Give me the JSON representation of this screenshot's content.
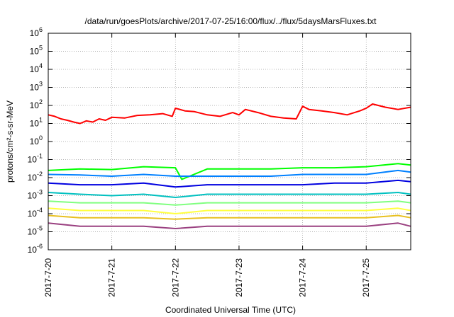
{
  "chart_data": {
    "type": "line",
    "title": "/data/run/goesPlots/archive/2017-07-25/16:00/flux/../flux/5daysMarsFluxes.txt",
    "xlabel": "Coordinated Universal Time (UTC)",
    "ylabel": "protons/cm²-s-sr-MeV",
    "y_scale": "log",
    "ylim": [
      1e-06,
      1000000.0
    ],
    "xlim": [
      0,
      5.7
    ],
    "x_ticks": [
      {
        "pos": 0,
        "label": "2017-7-20"
      },
      {
        "pos": 1,
        "label": "2017-7-21"
      },
      {
        "pos": 2,
        "label": "2017-7-22"
      },
      {
        "pos": 3,
        "label": "2017-7-23"
      },
      {
        "pos": 4,
        "label": "2017-7-24"
      },
      {
        "pos": 5,
        "label": "2017-7-25"
      }
    ],
    "y_ticks": [
      {
        "exp": "-6",
        "value": 1e-06
      },
      {
        "exp": "-5",
        "value": 1e-05
      },
      {
        "exp": "-4",
        "value": 0.0001
      },
      {
        "exp": "-3",
        "value": 0.001
      },
      {
        "exp": "-2",
        "value": 0.01
      },
      {
        "exp": "-1",
        "value": 0.1
      },
      {
        "exp": "0",
        "value": 1
      },
      {
        "exp": "1",
        "value": 10
      },
      {
        "exp": "2",
        "value": 100
      },
      {
        "exp": "3",
        "value": 1000
      },
      {
        "exp": "4",
        "value": 10000
      },
      {
        "exp": "5",
        "value": 100000
      },
      {
        "exp": "6",
        "value": 1000000
      }
    ],
    "grid": true,
    "series": [
      {
        "color": "#ff0000",
        "width": 2,
        "x": [
          0,
          0.1,
          0.2,
          0.3,
          0.4,
          0.5,
          0.6,
          0.7,
          0.8,
          0.9,
          1.0,
          1.2,
          1.4,
          1.6,
          1.8,
          1.95,
          2.0,
          2.15,
          2.3,
          2.5,
          2.7,
          2.9,
          3.0,
          3.1,
          3.3,
          3.5,
          3.7,
          3.9,
          4.0,
          4.1,
          4.3,
          4.5,
          4.7,
          4.9,
          5.0,
          5.1,
          5.3,
          5.5,
          5.7
        ],
        "y": [
          30,
          25,
          18,
          15,
          12,
          10,
          14,
          12,
          18,
          15,
          22,
          20,
          28,
          30,
          35,
          25,
          70,
          50,
          45,
          30,
          25,
          40,
          30,
          60,
          40,
          25,
          20,
          18,
          90,
          60,
          50,
          40,
          30,
          50,
          70,
          120,
          80,
          60,
          80
        ]
      },
      {
        "color": "#00ff00",
        "width": 2,
        "x": [
          0,
          0.5,
          1.0,
          1.5,
          2.0,
          2.1,
          2.5,
          3.0,
          3.5,
          4.0,
          4.5,
          5.0,
          5.5,
          5.7
        ],
        "y": [
          0.025,
          0.03,
          0.028,
          0.04,
          0.035,
          0.008,
          0.03,
          0.03,
          0.03,
          0.035,
          0.035,
          0.04,
          0.06,
          0.05
        ]
      },
      {
        "color": "#0080ff",
        "width": 2,
        "x": [
          0,
          0.5,
          1.0,
          1.5,
          2.0,
          2.5,
          3.0,
          3.5,
          4.0,
          4.5,
          5.0,
          5.5,
          5.7
        ],
        "y": [
          0.015,
          0.014,
          0.012,
          0.015,
          0.012,
          0.012,
          0.012,
          0.012,
          0.015,
          0.015,
          0.015,
          0.025,
          0.02
        ]
      },
      {
        "color": "#0000e0",
        "width": 2,
        "x": [
          0,
          0.5,
          1.0,
          1.5,
          2.0,
          2.5,
          3.0,
          3.5,
          4.0,
          4.5,
          5.0,
          5.5,
          5.7
        ],
        "y": [
          0.005,
          0.004,
          0.004,
          0.005,
          0.003,
          0.004,
          0.004,
          0.004,
          0.004,
          0.005,
          0.005,
          0.007,
          0.006
        ]
      },
      {
        "color": "#00c0c0",
        "width": 2,
        "x": [
          0,
          0.5,
          1.0,
          1.5,
          2.0,
          2.5,
          3.0,
          3.5,
          4.0,
          4.5,
          5.0,
          5.5,
          5.7
        ],
        "y": [
          0.0015,
          0.0012,
          0.001,
          0.0012,
          0.0008,
          0.0012,
          0.0012,
          0.0012,
          0.0012,
          0.0012,
          0.0012,
          0.0015,
          0.0012
        ]
      },
      {
        "color": "#80ff80",
        "width": 2,
        "x": [
          0,
          0.5,
          1.0,
          1.5,
          2.0,
          2.5,
          3.0,
          3.5,
          4.0,
          4.5,
          5.0,
          5.5,
          5.7
        ],
        "y": [
          0.0005,
          0.0004,
          0.0004,
          0.0004,
          0.0003,
          0.0004,
          0.0004,
          0.0004,
          0.0004,
          0.0004,
          0.0004,
          0.0005,
          0.0004
        ]
      },
      {
        "color": "#ffff40",
        "width": 2,
        "x": [
          0,
          0.5,
          1.0,
          1.5,
          2.0,
          2.5,
          3.0,
          3.5,
          4.0,
          4.5,
          5.0,
          5.5,
          5.7
        ],
        "y": [
          0.0002,
          0.00015,
          0.00015,
          0.00015,
          0.0001,
          0.00015,
          0.00015,
          0.00015,
          0.00015,
          0.00015,
          0.00015,
          0.0002,
          0.00015
        ]
      },
      {
        "color": "#e8c020",
        "width": 2,
        "x": [
          0,
          0.5,
          1.0,
          1.5,
          2.0,
          2.5,
          3.0,
          3.5,
          4.0,
          4.5,
          5.0,
          5.5,
          5.7
        ],
        "y": [
          8e-05,
          6e-05,
          6e-05,
          6e-05,
          5e-05,
          6e-05,
          6e-05,
          6e-05,
          6e-05,
          6e-05,
          6e-05,
          8e-05,
          6e-05
        ]
      },
      {
        "color": "#9a4080",
        "width": 2,
        "x": [
          0,
          0.5,
          1.0,
          1.5,
          2.0,
          2.5,
          3.0,
          3.5,
          4.0,
          4.5,
          5.0,
          5.5,
          5.7
        ],
        "y": [
          3e-05,
          2e-05,
          2e-05,
          2e-05,
          1.5e-05,
          2e-05,
          2e-05,
          2e-05,
          2e-05,
          2e-05,
          2e-05,
          3e-05,
          2e-05
        ]
      }
    ]
  }
}
